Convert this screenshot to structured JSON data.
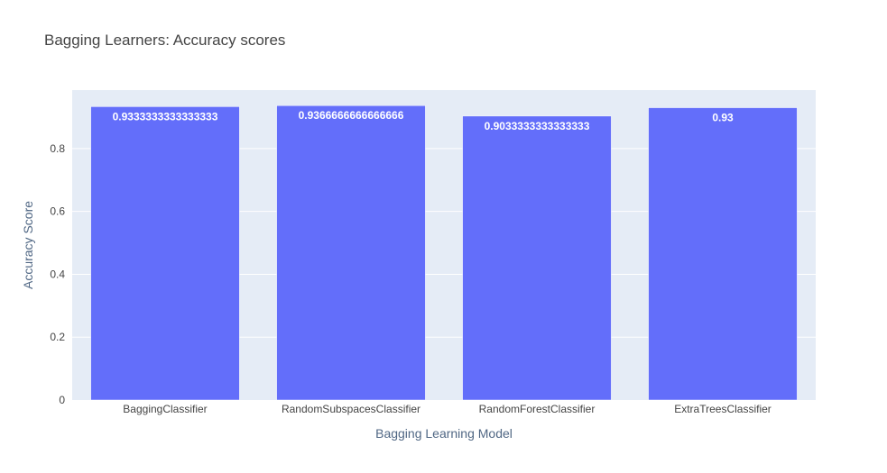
{
  "chart_data": {
    "type": "bar",
    "title": "Bagging Learners: Accuracy scores",
    "xlabel": "Bagging Learning Model",
    "ylabel": "Accuracy Score",
    "categories": [
      "BaggingClassifier",
      "RandomSubspacesClassifier",
      "RandomForestClassifier",
      "ExtraTreesClassifier"
    ],
    "values": [
      0.9333333333333333,
      0.9366666666666666,
      0.9033333333333333,
      0.93
    ],
    "value_labels": [
      "0.9333333333333333",
      "0.9366666666666666",
      "0.9033333333333333",
      "0.93"
    ],
    "ylim": [
      0,
      0.986
    ],
    "yticks": [
      0,
      0.2,
      0.4,
      0.6,
      0.8
    ],
    "ytick_labels": [
      "0",
      "0.2",
      "0.4",
      "0.6",
      "0.8"
    ],
    "grid": true,
    "bar_color": "#636efa",
    "plot_bg": "#e5ecf6"
  }
}
